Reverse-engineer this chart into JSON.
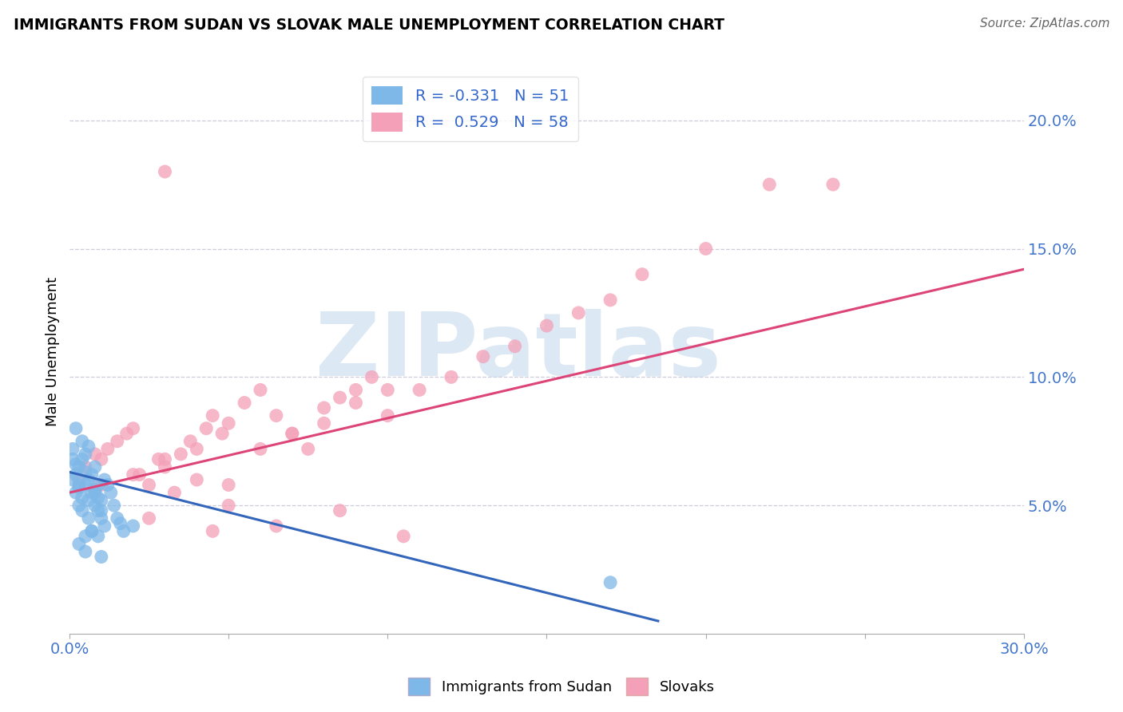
{
  "title": "IMMIGRANTS FROM SUDAN VS SLOVAK MALE UNEMPLOYMENT CORRELATION CHART",
  "source": "Source: ZipAtlas.com",
  "ylabel": "Male Unemployment",
  "xlim": [
    0.0,
    0.3
  ],
  "ylim": [
    0.0,
    0.22
  ],
  "xticks": [
    0.0,
    0.05,
    0.1,
    0.15,
    0.2,
    0.25,
    0.3
  ],
  "xtick_labels": [
    "0.0%",
    "",
    "",
    "",
    "",
    "",
    "30.0%"
  ],
  "ytick_positions": [
    0.05,
    0.1,
    0.15,
    0.2
  ],
  "ytick_labels": [
    "5.0%",
    "10.0%",
    "15.0%",
    "20.0%"
  ],
  "blue_R": -0.331,
  "blue_N": 51,
  "pink_R": 0.529,
  "pink_N": 58,
  "legend_label_blue": "Immigrants from Sudan",
  "legend_label_pink": "Slovaks",
  "blue_color": "#7EB8E8",
  "pink_color": "#F4A0B8",
  "blue_line_color": "#3366BB",
  "pink_line_color": "#DD4477",
  "watermark": "ZIPatlas",
  "watermark_color": "#C5D9EC",
  "blue_scatter_x": [
    0.001,
    0.001,
    0.002,
    0.002,
    0.003,
    0.003,
    0.003,
    0.004,
    0.004,
    0.005,
    0.005,
    0.005,
    0.006,
    0.006,
    0.007,
    0.007,
    0.008,
    0.008,
    0.009,
    0.009,
    0.01,
    0.01,
    0.011,
    0.011,
    0.012,
    0.013,
    0.014,
    0.015,
    0.016,
    0.017,
    0.001,
    0.002,
    0.003,
    0.004,
    0.005,
    0.006,
    0.007,
    0.008,
    0.009,
    0.01,
    0.002,
    0.003,
    0.004,
    0.005,
    0.006,
    0.007,
    0.008,
    0.009,
    0.01,
    0.02,
    0.17
  ],
  "blue_scatter_y": [
    0.06,
    0.068,
    0.055,
    0.062,
    0.05,
    0.057,
    0.065,
    0.048,
    0.053,
    0.058,
    0.063,
    0.07,
    0.052,
    0.06,
    0.055,
    0.062,
    0.05,
    0.056,
    0.048,
    0.053,
    0.045,
    0.052,
    0.06,
    0.042,
    0.058,
    0.055,
    0.05,
    0.045,
    0.043,
    0.04,
    0.072,
    0.066,
    0.058,
    0.075,
    0.038,
    0.045,
    0.04,
    0.065,
    0.058,
    0.048,
    0.08,
    0.035,
    0.068,
    0.032,
    0.073,
    0.04,
    0.055,
    0.038,
    0.03,
    0.042,
    0.02
  ],
  "pink_scatter_x": [
    0.003,
    0.005,
    0.008,
    0.01,
    0.012,
    0.015,
    0.018,
    0.02,
    0.022,
    0.025,
    0.028,
    0.03,
    0.033,
    0.035,
    0.038,
    0.04,
    0.043,
    0.045,
    0.048,
    0.05,
    0.055,
    0.06,
    0.065,
    0.07,
    0.075,
    0.08,
    0.085,
    0.09,
    0.095,
    0.1,
    0.01,
    0.02,
    0.03,
    0.04,
    0.05,
    0.06,
    0.07,
    0.08,
    0.09,
    0.1,
    0.11,
    0.12,
    0.13,
    0.14,
    0.15,
    0.16,
    0.17,
    0.18,
    0.2,
    0.22,
    0.025,
    0.045,
    0.065,
    0.085,
    0.105,
    0.03,
    0.05,
    0.24
  ],
  "pink_scatter_y": [
    0.06,
    0.065,
    0.07,
    0.068,
    0.072,
    0.075,
    0.078,
    0.08,
    0.062,
    0.058,
    0.068,
    0.065,
    0.055,
    0.07,
    0.075,
    0.072,
    0.08,
    0.085,
    0.078,
    0.082,
    0.09,
    0.095,
    0.085,
    0.078,
    0.072,
    0.088,
    0.092,
    0.095,
    0.1,
    0.095,
    0.058,
    0.062,
    0.068,
    0.06,
    0.058,
    0.072,
    0.078,
    0.082,
    0.09,
    0.085,
    0.095,
    0.1,
    0.108,
    0.112,
    0.12,
    0.125,
    0.13,
    0.14,
    0.15,
    0.175,
    0.045,
    0.04,
    0.042,
    0.048,
    0.038,
    0.18,
    0.05,
    0.175
  ],
  "blue_line_x0": 0.0,
  "blue_line_x1": 0.185,
  "blue_line_y0": 0.063,
  "blue_line_y1": 0.005,
  "pink_line_x0": 0.0,
  "pink_line_x1": 0.3,
  "pink_line_y0": 0.055,
  "pink_line_y1": 0.142
}
